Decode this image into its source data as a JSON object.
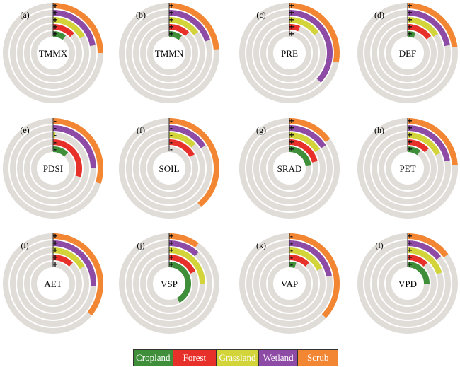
{
  "chart_data": {
    "type": "radial-bar",
    "max_value": 1,
    "rings_inner_to_outer": [
      "Cropland",
      "Forest",
      "Grassland",
      "Wetland",
      "Scrub"
    ],
    "colors": {
      "Cropland": "#3f8f3a",
      "Forest": "#e8302a",
      "Grassland": "#d2d43a",
      "Wetland": "#8e4ba6",
      "Scrub": "#f28633",
      "track": "#e0dcd8"
    },
    "legend": [
      {
        "label": "Cropland",
        "color": "#3f8f3a",
        "width": 56
      },
      {
        "label": "Forest",
        "color": "#e8302a",
        "width": 62
      },
      {
        "label": "Grassland",
        "color": "#d2d43a",
        "width": 60
      },
      {
        "label": "Wetland",
        "color": "#8e4ba6",
        "width": 56
      },
      {
        "label": "Scrub",
        "color": "#f28633",
        "width": 56
      }
    ],
    "panels": [
      {
        "tag": "(a)",
        "label": "TMMX",
        "values": {
          "Cropland": 0.1,
          "Forest": 0.13,
          "Grassland": 0.17,
          "Wetland": 0.22,
          "Scrub": 0.25
        },
        "signs": {
          "Cropland": "+",
          "Forest": "+",
          "Grassland": "+",
          "Wetland": "+",
          "Scrub": "+"
        }
      },
      {
        "tag": "(b)",
        "label": "TMMN",
        "values": {
          "Cropland": 0.1,
          "Forest": 0.12,
          "Grassland": 0.15,
          "Wetland": 0.2,
          "Scrub": 0.24
        },
        "signs": {
          "Cropland": "+",
          "Forest": "+",
          "Grassland": "+",
          "Wetland": "+",
          "Scrub": "+"
        }
      },
      {
        "tag": "(c)",
        "label": "PRE",
        "values": {
          "Cropland": 0.0,
          "Forest": 0.06,
          "Grassland": 0.15,
          "Wetland": 0.37,
          "Scrub": 0.28
        },
        "signs": {
          "Cropland": "+",
          "Forest": "+",
          "Grassland": "+",
          "Wetland": "+",
          "Scrub": "+"
        }
      },
      {
        "tag": "(d)",
        "label": "DEF",
        "values": {
          "Cropland": 0.06,
          "Forest": 0.15,
          "Grassland": 0.16,
          "Wetland": 0.22,
          "Scrub": 0.23
        },
        "signs": {
          "Cropland": "+",
          "Forest": "+",
          "Grassland": "+",
          "Wetland": "+",
          "Scrub": "+"
        }
      },
      {
        "tag": "(e)",
        "label": "PDSI",
        "values": {
          "Cropland": 0.12,
          "Forest": 0.3,
          "Grassland": 0.01,
          "Wetland": 0.25,
          "Scrub": 0.3
        },
        "signs": {
          "Cropland": "-",
          "Forest": "-",
          "Grassland": "-",
          "Wetland": "-",
          "Scrub": "-"
        }
      },
      {
        "tag": "(f)",
        "label": "SOIL",
        "values": {
          "Cropland": 0.0,
          "Forest": 0.17,
          "Grassland": 0.13,
          "Wetland": 0.16,
          "Scrub": 0.39
        },
        "signs": {
          "Cropland": "-",
          "Forest": "-",
          "Grassland": "-",
          "Wetland": "-",
          "Scrub": "-"
        }
      },
      {
        "tag": "(g)",
        "label": "SRAD",
        "values": {
          "Cropland": 0.23,
          "Forest": 0.21,
          "Grassland": 0.16,
          "Wetland": 0.16,
          "Scrub": 0.15
        },
        "signs": {
          "Cropland": "+",
          "Forest": "+",
          "Grassland": "+",
          "Wetland": "+",
          "Scrub": "+"
        }
      },
      {
        "tag": "(h)",
        "label": "PET",
        "values": {
          "Cropland": 0.1,
          "Forest": 0.13,
          "Grassland": 0.18,
          "Wetland": 0.22,
          "Scrub": 0.24
        },
        "signs": {
          "Cropland": "+",
          "Forest": "+",
          "Grassland": "+",
          "Wetland": "+",
          "Scrub": "+"
        }
      },
      {
        "tag": "(i)",
        "label": "AET",
        "values": {
          "Cropland": 0.0,
          "Forest": 0.12,
          "Grassland": 0.17,
          "Wetland": 0.26,
          "Scrub": 0.36
        },
        "signs": {
          "Cropland": "+",
          "Forest": "+",
          "Grassland": "+",
          "Wetland": "+",
          "Scrub": "+"
        }
      },
      {
        "tag": "(j)",
        "label": "VSP",
        "values": {
          "Cropland": 0.42,
          "Forest": 0.18,
          "Grassland": 0.25,
          "Wetland": 0.12,
          "Scrub": 0.1
        },
        "signs": {
          "Cropland": "+",
          "Forest": "+",
          "Grassland": "+",
          "Wetland": "+",
          "Scrub": "+"
        }
      },
      {
        "tag": "(k)",
        "label": "VAP",
        "values": {
          "Cropland": 0.05,
          "Forest": 0.12,
          "Grassland": 0.18,
          "Wetland": 0.22,
          "Scrub": 0.37
        },
        "signs": {
          "Cropland": "-",
          "Forest": "-",
          "Grassland": "-",
          "Wetland": "-",
          "Scrub": "-"
        }
      },
      {
        "tag": "(l)",
        "label": "VPD",
        "values": {
          "Cropland": 0.25,
          "Forest": 0.12,
          "Grassland": 0.2,
          "Wetland": 0.14,
          "Scrub": 0.15
        },
        "signs": {
          "Cropland": "+",
          "Forest": "+",
          "Grassland": "+",
          "Wetland": "+",
          "Scrub": "+"
        }
      }
    ]
  }
}
